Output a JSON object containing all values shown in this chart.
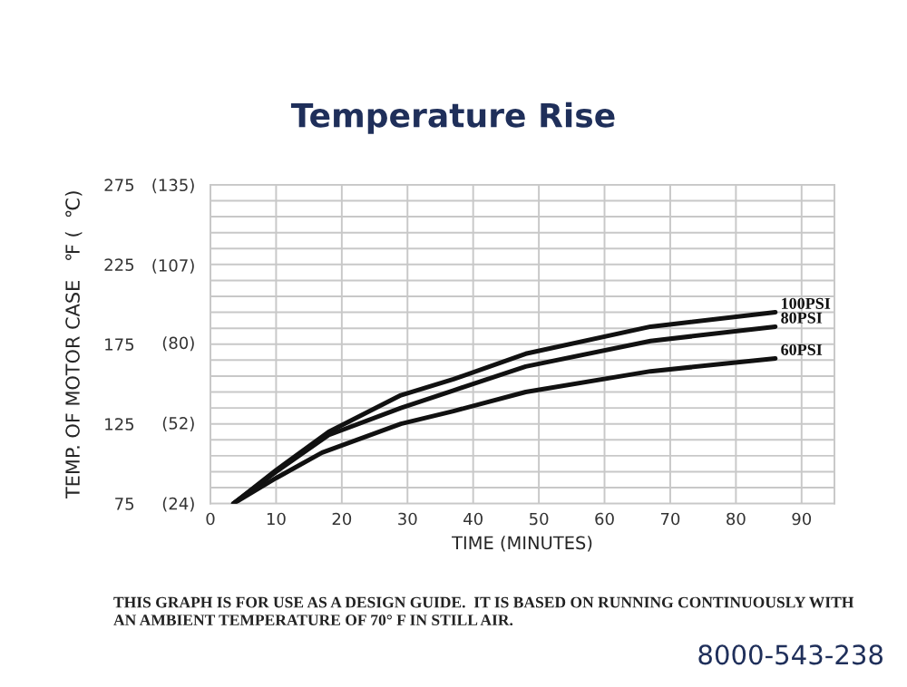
{
  "chart_data": {
    "type": "line",
    "title": "Temperature Rise",
    "xlabel": "TIME (MINUTES)",
    "ylabel": "TEMP. OF MOTOR CASE   ℉ (  ℃)",
    "series": [
      {
        "name": "100PSI",
        "color": "#111111",
        "x": [
          3.5,
          10,
          18,
          29,
          37,
          48,
          67,
          86
        ],
        "values": [
          75,
          96,
          120,
          143,
          153,
          169,
          186,
          195
        ]
      },
      {
        "name": "80PSI",
        "color": "#111111",
        "x": [
          3.5,
          10,
          18,
          29,
          37,
          48,
          67,
          86
        ],
        "values": [
          75,
          95,
          118,
          135,
          146,
          161,
          177,
          186
        ]
      },
      {
        "name": "60PSI",
        "color": "#111111",
        "x": [
          3.5,
          10,
          17,
          29,
          37,
          48,
          67,
          86
        ],
        "values": [
          75,
          91,
          107,
          125,
          133,
          145,
          158,
          166
        ]
      }
    ],
    "xlim": [
      0,
      95
    ],
    "xticks": [
      0,
      10,
      20,
      30,
      40,
      50,
      60,
      70,
      80,
      90
    ],
    "ylim": [
      75,
      275
    ],
    "y2lim": [
      23.9,
      135
    ],
    "y2ticks": [
      {
        "value": 24,
        "label": "(24)"
      },
      {
        "value": 52,
        "label": "(52)"
      },
      {
        "value": 80,
        "label": "(80)"
      },
      {
        "value": 107,
        "label": "(107)"
      },
      {
        "value": 135,
        "label": "(135)"
      }
    ],
    "yticks": [
      75,
      {
        "value": 85,
        "label": null
      },
      {
        "value": 95,
        "label": null
      },
      {
        "value": 105,
        "label": null
      },
      {
        "value": 115,
        "label": null
      },
      125,
      {
        "value": 135,
        "label": null
      },
      {
        "value": 145,
        "label": null
      },
      {
        "value": 155,
        "label": null
      },
      {
        "value": 165,
        "label": null
      },
      175,
      {
        "value": 185,
        "label": null
      },
      {
        "value": 195,
        "label": null
      },
      {
        "value": 205,
        "label": null
      },
      {
        "value": 215,
        "label": null
      },
      225,
      {
        "value": 235,
        "label": null
      },
      {
        "value": 245,
        "label": null
      },
      {
        "value": 255,
        "label": null
      },
      {
        "value": 265,
        "label": null
      },
      275
    ],
    "grid": true,
    "legend": false,
    "marker": "none",
    "line_style": "solid",
    "annotations": [
      "THIS GRAPH IS FOR USE AS A DESIGN GUIDE.  IT IS BASED ON RUNNING CONTINUOUSLY WITH\nAN AMBIENT TEMPERATURE OF 70° F IN STILL AIR.",
      "8000-543-238"
    ]
  }
}
